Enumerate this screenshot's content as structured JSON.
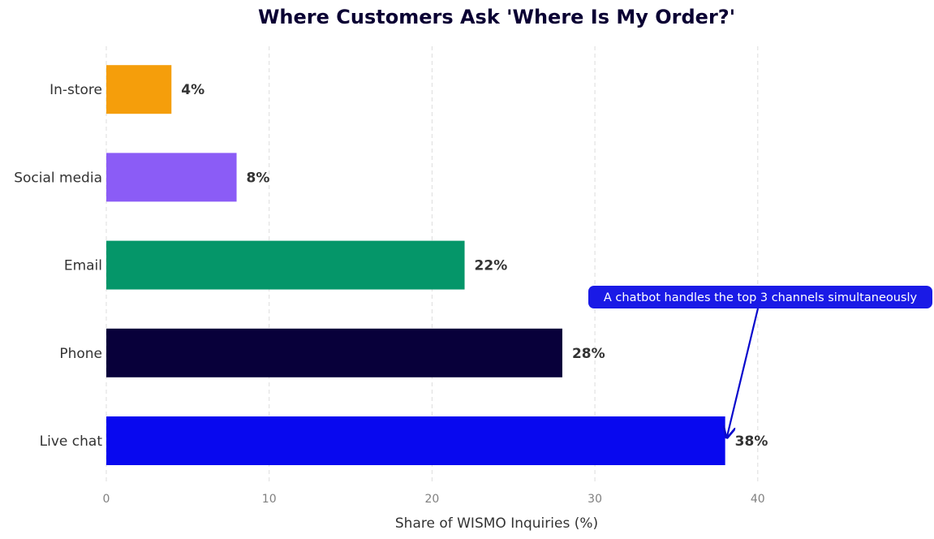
{
  "chart_data": {
    "type": "bar",
    "orientation": "horizontal",
    "title": "Where Customers Ask 'Where Is My Order?'",
    "xlabel": "Share of WISMO Inquiries (%)",
    "ylabel": "",
    "xlim": [
      0,
      50
    ],
    "xticks": [
      0,
      10,
      20,
      30,
      40
    ],
    "grid": "vertical-dashed",
    "categories": [
      "Live chat",
      "Phone",
      "Email",
      "Social media",
      "In-store"
    ],
    "values": [
      38,
      28,
      22,
      8,
      4
    ],
    "value_labels": [
      "38%",
      "28%",
      "22%",
      "8%",
      "4%"
    ],
    "colors": [
      "#0808ef",
      "#08003a",
      "#059669",
      "#8b5cf6",
      "#f59e0b"
    ],
    "annotation": {
      "text": "A chatbot handles the top 3 channels simultaneously",
      "target_category": "Live chat",
      "target_value": 38,
      "box_color": "#1a1ae6",
      "arrow_color": "#0808cc"
    }
  }
}
